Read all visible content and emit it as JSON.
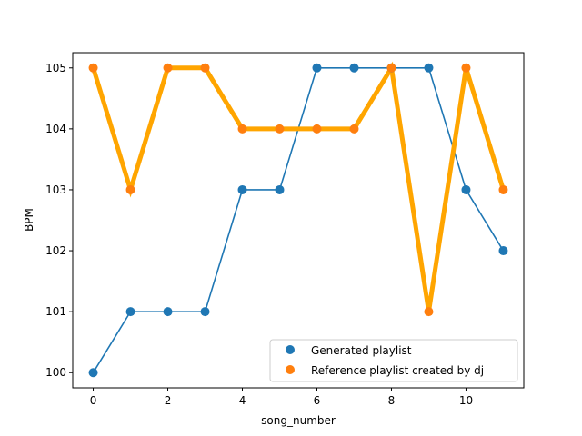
{
  "chart_data": {
    "type": "line",
    "title": "",
    "xlabel": "song_number",
    "ylabel": "BPM",
    "xlim": [
      -0.55,
      11.55
    ],
    "ylim": [
      99.75,
      105.25
    ],
    "xticks": [
      0,
      2,
      4,
      6,
      8,
      10
    ],
    "yticks": [
      100,
      101,
      102,
      103,
      104,
      105
    ],
    "grid": false,
    "legend_position": "lower-right",
    "x": [
      0,
      1,
      2,
      3,
      4,
      5,
      6,
      7,
      8,
      9,
      10,
      11
    ],
    "series": [
      {
        "name": "Generated playlist",
        "color": "#1f77b4",
        "line_width": "thin",
        "values": [
          100,
          101,
          101,
          101,
          103,
          103,
          105,
          105,
          105,
          105,
          103,
          102
        ]
      },
      {
        "name": "Reference playlist created by dj",
        "color": "#ff7f0e",
        "line_color": "#ffa500",
        "line_width": "thick",
        "values": [
          105,
          103,
          105,
          105,
          104,
          104,
          104,
          104,
          105,
          101,
          105,
          103
        ]
      }
    ]
  }
}
